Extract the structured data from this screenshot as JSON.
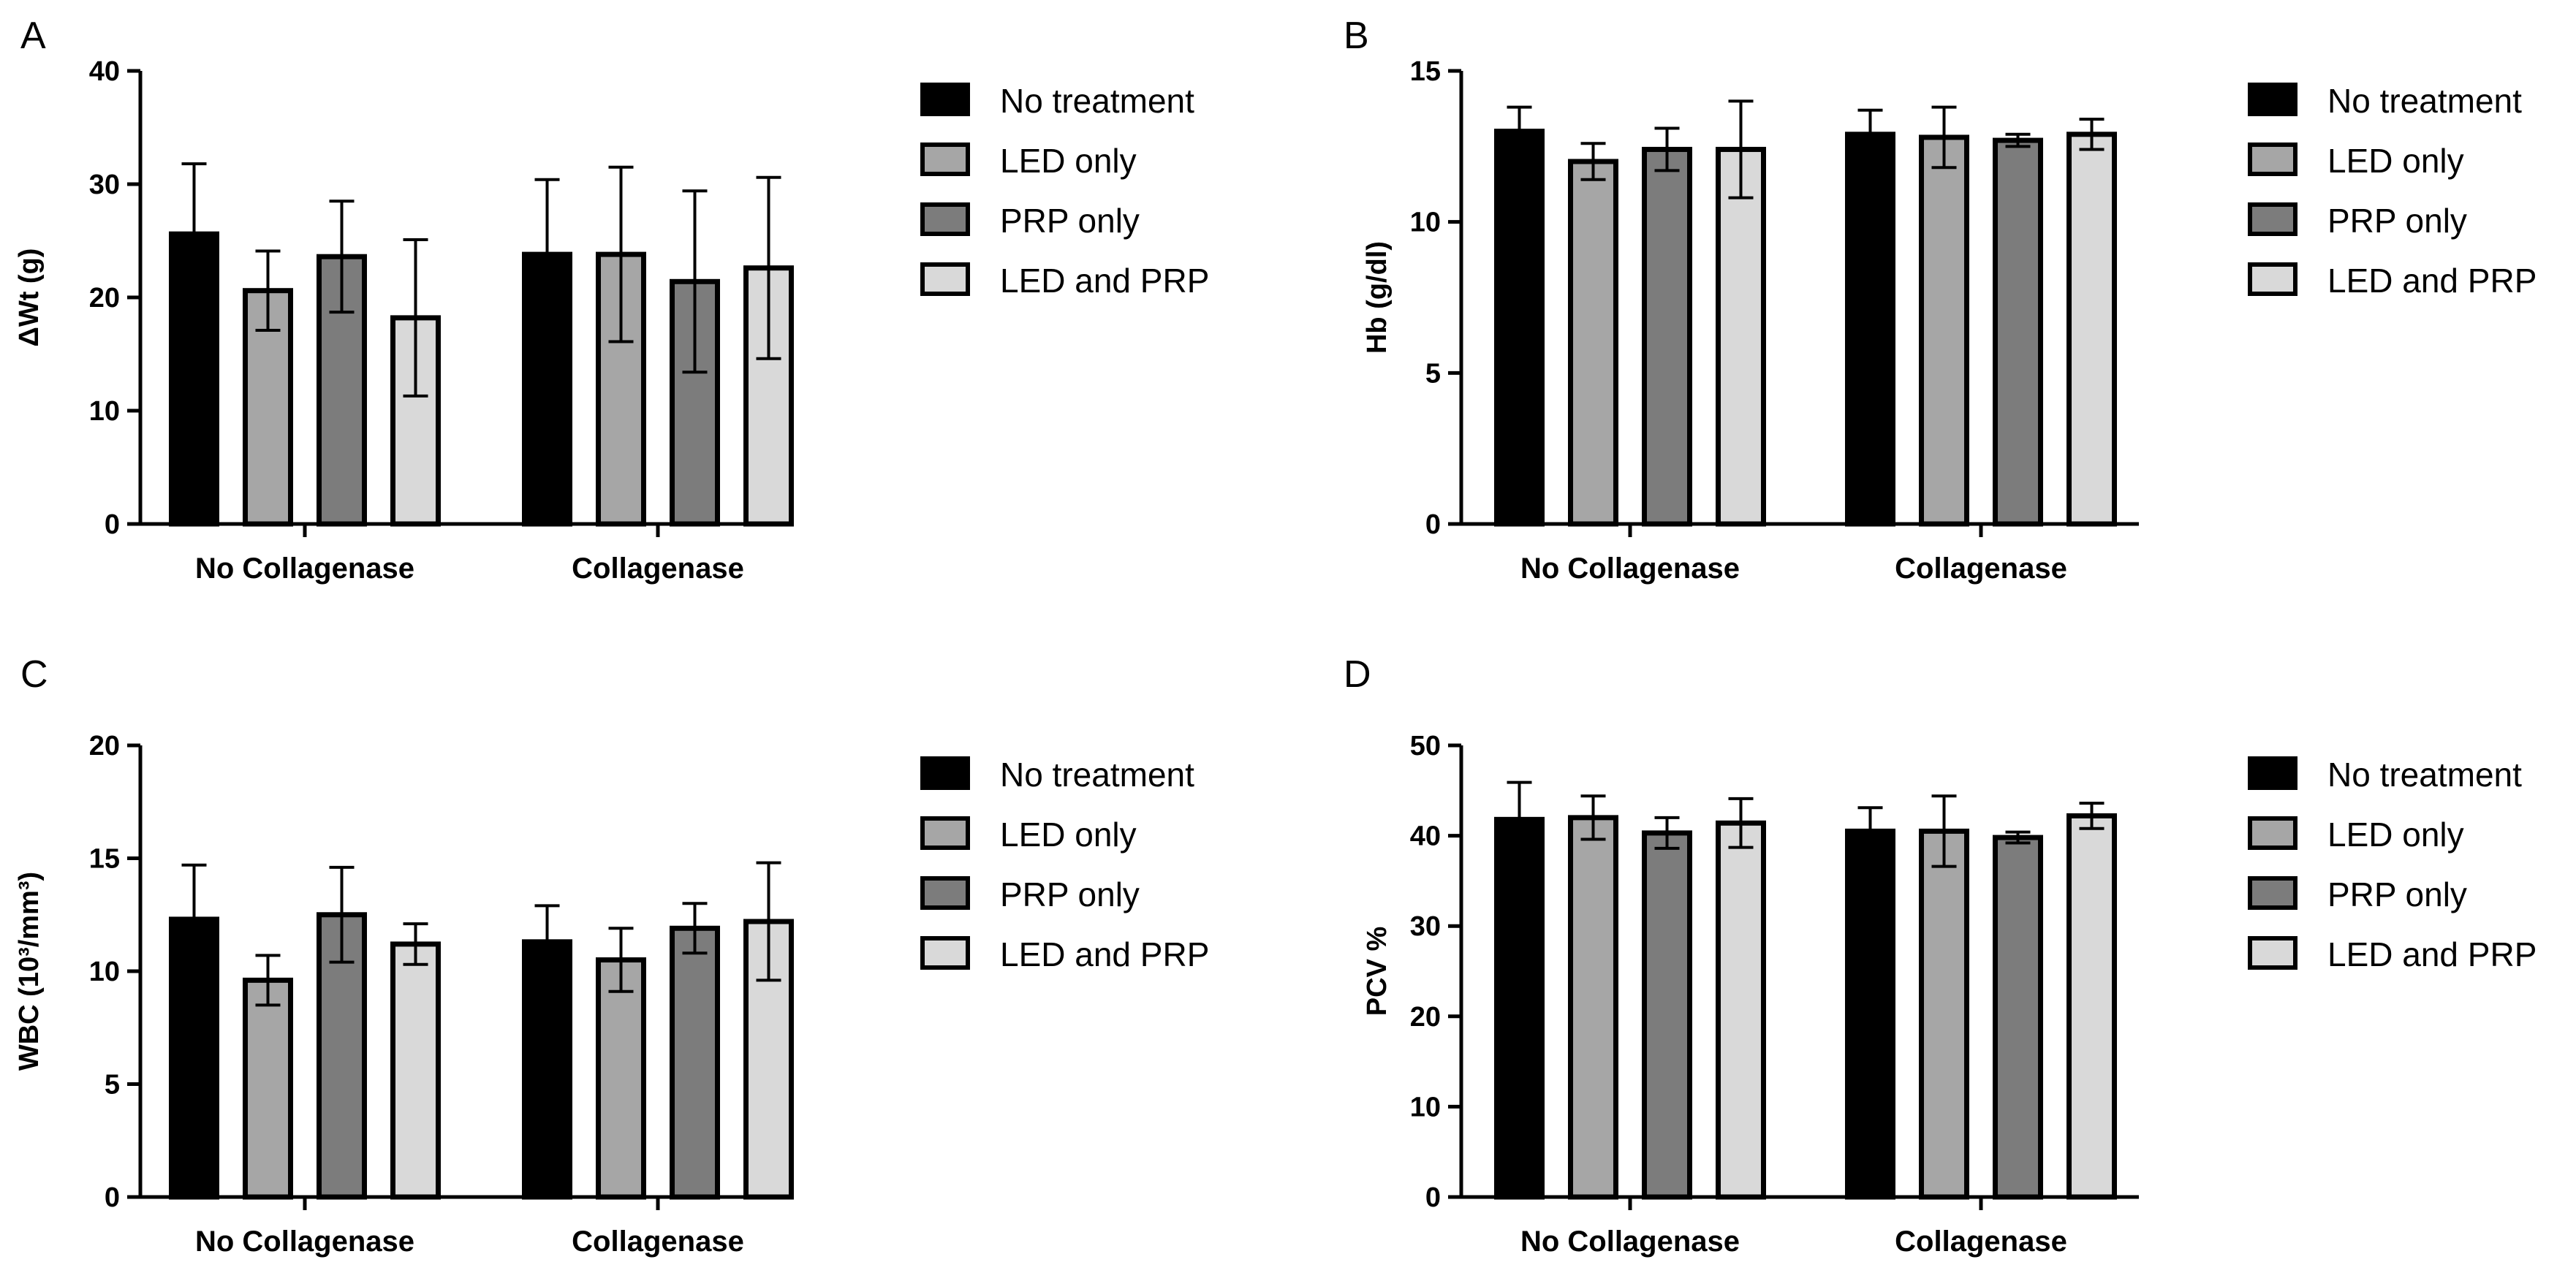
{
  "chart_data": [
    {
      "panel": "A",
      "type": "bar",
      "ylabel": "ΔWt (g)",
      "ylim": [
        0,
        40
      ],
      "yticks": [
        0,
        10,
        20,
        30,
        40
      ],
      "categories": [
        "No Collagenase",
        "Collagenase"
      ],
      "series": [
        {
          "name": "No treatment",
          "values": [
            25.6,
            23.8
          ],
          "errors": [
            6.2,
            6.6
          ]
        },
        {
          "name": "LED only",
          "values": [
            20.6,
            23.8
          ],
          "errors": [
            3.5,
            7.7
          ]
        },
        {
          "name": "PRP only",
          "values": [
            23.6,
            21.4
          ],
          "errors": [
            4.9,
            8.0
          ]
        },
        {
          "name": "LED and PRP",
          "values": [
            18.2,
            22.6
          ],
          "errors": [
            6.9,
            8.0
          ]
        }
      ]
    },
    {
      "panel": "B",
      "type": "bar",
      "ylabel": "Hb (g/dl)",
      "ylim": [
        0,
        15
      ],
      "yticks": [
        0,
        5,
        10,
        15
      ],
      "categories": [
        "No Collagenase",
        "Collagenase"
      ],
      "series": [
        {
          "name": "No treatment",
          "values": [
            13.0,
            12.9
          ],
          "errors": [
            0.8,
            0.8
          ]
        },
        {
          "name": "LED only",
          "values": [
            12.0,
            12.8
          ],
          "errors": [
            0.6,
            1.0
          ]
        },
        {
          "name": "PRP only",
          "values": [
            12.4,
            12.7
          ],
          "errors": [
            0.7,
            0.2
          ]
        },
        {
          "name": "LED and PRP",
          "values": [
            12.4,
            12.9
          ],
          "errors": [
            1.6,
            0.5
          ]
        }
      ]
    },
    {
      "panel": "C",
      "type": "bar",
      "ylabel": "WBC (10³/mm³)",
      "ylim": [
        0,
        20
      ],
      "yticks": [
        0,
        5,
        10,
        15,
        20
      ],
      "categories": [
        "No Collagenase",
        "Collagenase"
      ],
      "series": [
        {
          "name": "No treatment",
          "values": [
            12.3,
            11.3
          ],
          "errors": [
            2.4,
            1.6
          ]
        },
        {
          "name": "LED only",
          "values": [
            9.6,
            10.5
          ],
          "errors": [
            1.1,
            1.4
          ]
        },
        {
          "name": "PRP only",
          "values": [
            12.5,
            11.9
          ],
          "errors": [
            2.1,
            1.1
          ]
        },
        {
          "name": "LED and PRP",
          "values": [
            11.2,
            12.2
          ],
          "errors": [
            0.9,
            2.6
          ]
        }
      ]
    },
    {
      "panel": "D",
      "type": "bar",
      "ylabel": "PCV %",
      "ylim": [
        0,
        50
      ],
      "yticks": [
        0,
        10,
        20,
        30,
        40,
        50
      ],
      "categories": [
        "No Collagenase",
        "Collagenase"
      ],
      "series": [
        {
          "name": "No treatment",
          "values": [
            41.8,
            40.5
          ],
          "errors": [
            4.1,
            2.6
          ]
        },
        {
          "name": "LED only",
          "values": [
            42.0,
            40.5
          ],
          "errors": [
            2.4,
            3.9
          ]
        },
        {
          "name": "PRP only",
          "values": [
            40.3,
            39.8
          ],
          "errors": [
            1.7,
            0.6
          ]
        },
        {
          "name": "LED and PRP",
          "values": [
            41.4,
            42.2
          ],
          "errors": [
            2.7,
            1.4
          ]
        }
      ]
    }
  ],
  "colors": {
    "No treatment": "#000000",
    "LED only": "#a6a6a6",
    "PRP only": "#7c7c7c",
    "LED and PRP": "#d9d9d9",
    "outline": "#000000"
  }
}
